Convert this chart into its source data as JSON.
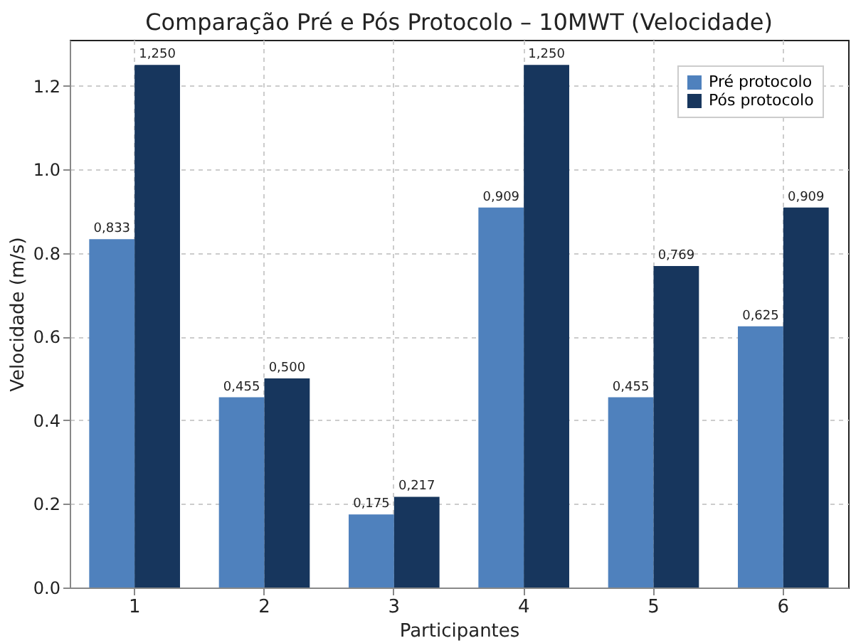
{
  "chart_data": {
    "type": "bar",
    "title": "Comparação Pré e Pós Protocolo – 10MWT (Velocidade)",
    "xlabel": "Participantes",
    "ylabel": "Velocidade (m/s)",
    "categories": [
      "1",
      "2",
      "3",
      "4",
      "5",
      "6"
    ],
    "series": [
      {
        "name": "Pré protocolo",
        "color": "#4f81bd",
        "values": [
          0.833,
          0.455,
          0.175,
          0.909,
          0.455,
          0.625
        ],
        "value_labels": [
          "0,833",
          "0,455",
          "0,175",
          "0,909",
          "0,455",
          "0,625"
        ]
      },
      {
        "name": "Pós protocolo",
        "color": "#17365d",
        "values": [
          1.25,
          0.5,
          0.217,
          1.25,
          0.769,
          0.909
        ],
        "value_labels": [
          "1,250",
          "0,500",
          "0,217",
          "1,250",
          "0,769",
          "0,909"
        ]
      }
    ],
    "ylim": [
      0,
      1.31
    ],
    "yticks": [
      {
        "value": 0,
        "label": "0.0"
      },
      {
        "value": 0.2,
        "label": "0.2"
      },
      {
        "value": 0.4,
        "label": "0.4"
      },
      {
        "value": 0.6,
        "label": "0.6"
      },
      {
        "value": 0.8,
        "label": "0.8"
      },
      {
        "value": 1.0,
        "label": "1.0"
      },
      {
        "value": 1.2,
        "label": "1.2"
      }
    ],
    "grid": true,
    "legend": "top right"
  }
}
